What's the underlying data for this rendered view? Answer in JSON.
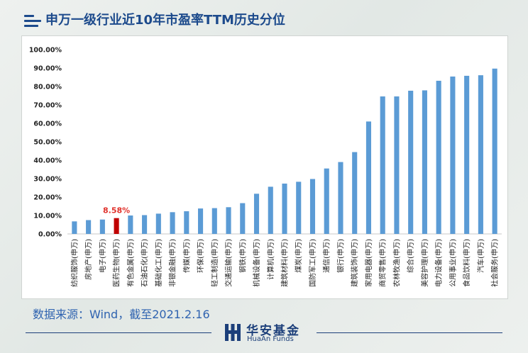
{
  "title": "申万一级行业近10年市盈率TTM历史分位",
  "source": "数据来源：Wind，截至2021.2.16",
  "logo": {
    "cn": "华安基金",
    "en": "HuaAn Funds",
    "icon": "huaan-logo-icon"
  },
  "colors": {
    "bar": "#5b9bd5",
    "highlight": "#c00000",
    "highlight_label": "#e0302a",
    "title": "#1c4a8c"
  },
  "chart_data": {
    "type": "bar",
    "title": "申万一级行业近10年市盈率TTM历史分位",
    "xlabel": "",
    "ylabel": "",
    "ylim": [
      0,
      100
    ],
    "yticks": [
      "0.00%",
      "10.00%",
      "20.00%",
      "30.00%",
      "40.00%",
      "50.00%",
      "60.00%",
      "70.00%",
      "80.00%",
      "90.00%",
      "100.00%"
    ],
    "grid": false,
    "categories": [
      "纺织服饰(申万)",
      "房地产(申万)",
      "电子(申万)",
      "医药生物(申万)",
      "有色金属(申万)",
      "石油石化(申万)",
      "基础化工(申万)",
      "非银金融(申万)",
      "传媒(申万)",
      "环保(申万)",
      "轻工制造(申万)",
      "交通运输(申万)",
      "钢铁(申万)",
      "机械设备(申万)",
      "计算机(申万)",
      "建筑材料(申万)",
      "煤炭(申万)",
      "国防军工(申万)",
      "通信(申万)",
      "银行(申万)",
      "建筑装饰(申万)",
      "家用电器(申万)",
      "商贸零售(申万)",
      "农林牧渔(申万)",
      "综合(申万)",
      "美容护理(申万)",
      "电力设备(申万)",
      "公用事业(申万)",
      "食品饮料(申万)",
      "汽车(申万)",
      "社会服务(申万)"
    ],
    "values": [
      6.8,
      7.5,
      7.8,
      8.58,
      10.0,
      10.2,
      11.0,
      11.8,
      12.3,
      13.8,
      14.0,
      14.5,
      16.7,
      21.8,
      25.6,
      27.3,
      28.3,
      29.8,
      35.5,
      39.0,
      44.4,
      61.0,
      74.6,
      74.6,
      77.7,
      77.9,
      83.1,
      85.4,
      85.8,
      86.1,
      89.7
    ],
    "highlight_index": 3,
    "data_labels": [
      {
        "index": 3,
        "text": "8.58%"
      }
    ]
  }
}
